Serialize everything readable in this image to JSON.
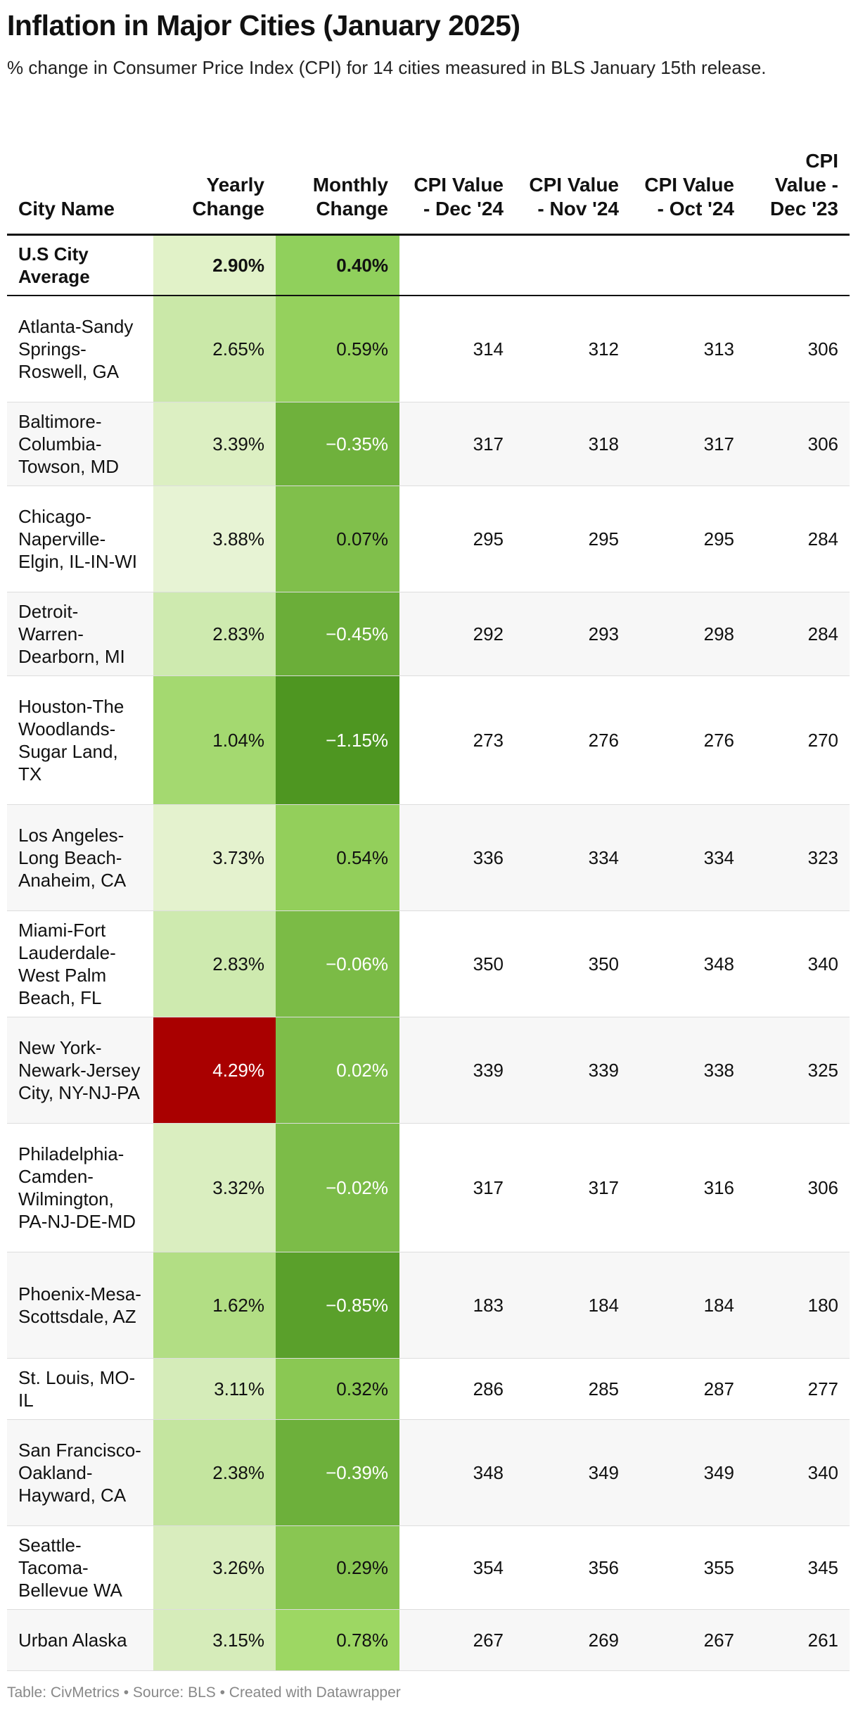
{
  "title": "Inflation in Major Cities (January 2025)",
  "subtitle": "% change in Consumer Price Index (CPI) for 14 cities measured in BLS January 15th release.",
  "footer": "Table: CivMetrics • Source: BLS • Created with Datawrapper",
  "chart_data": {
    "type": "table",
    "columns": [
      "City Name",
      "Yearly Change",
      "Monthly Change",
      "CPI Value - Dec '24",
      "CPI Value - Nov '24",
      "CPI Value - Oct '24",
      "CPI Value - Dec '23"
    ],
    "heatmap_columns": {
      "Yearly Change": {
        "low": 1.04,
        "high": 4.29,
        "high_color": "#a90000"
      },
      "Monthly Change": {
        "low": -1.15,
        "high": 0.78
      }
    },
    "average_row": [
      "U.S City Average",
      "2.90%",
      "0.40%",
      "",
      "",
      "",
      ""
    ],
    "rows": [
      [
        "Atlanta-Sandy Springs-Roswell, GA",
        "2.65%",
        "0.59%",
        "314",
        "312",
        "313",
        "306"
      ],
      [
        "Baltimore-Columbia-Towson, MD",
        "3.39%",
        "−0.35%",
        "317",
        "318",
        "317",
        "306"
      ],
      [
        "Chicago-Naperville-Elgin, IL-IN-WI",
        "3.88%",
        "0.07%",
        "295",
        "295",
        "295",
        "284"
      ],
      [
        "Detroit-Warren-Dearborn, MI",
        "2.83%",
        "−0.45%",
        "292",
        "293",
        "298",
        "284"
      ],
      [
        "Houston-The Woodlands-Sugar Land, TX",
        "1.04%",
        "−1.15%",
        "273",
        "276",
        "276",
        "270"
      ],
      [
        "Los Angeles-Long Beach-Anaheim, CA",
        "3.73%",
        "0.54%",
        "336",
        "334",
        "334",
        "323"
      ],
      [
        "Miami-Fort Lauderdale-West Palm Beach, FL",
        "2.83%",
        "−0.06%",
        "350",
        "350",
        "348",
        "340"
      ],
      [
        "New York-Newark-Jersey City, NY-NJ-PA",
        "4.29%",
        "0.02%",
        "339",
        "339",
        "338",
        "325"
      ],
      [
        "Philadelphia-Camden-Wilmington, PA-NJ-DE-MD",
        "3.32%",
        "−0.02%",
        "317",
        "317",
        "316",
        "306"
      ],
      [
        "Phoenix-Mesa-Scottsdale, AZ",
        "1.62%",
        "−0.85%",
        "183",
        "184",
        "184",
        "180"
      ],
      [
        "St. Louis, MO-IL",
        "3.11%",
        "0.32%",
        "286",
        "285",
        "287",
        "277"
      ],
      [
        "San Francisco-Oakland-Hayward, CA",
        "2.38%",
        "−0.39%",
        "348",
        "349",
        "349",
        "340"
      ],
      [
        "Seattle-Tacoma-Bellevue WA",
        "3.26%",
        "0.29%",
        "354",
        "356",
        "355",
        "345"
      ],
      [
        "Urban Alaska",
        "3.15%",
        "0.78%",
        "267",
        "269",
        "267",
        "261"
      ]
    ]
  }
}
